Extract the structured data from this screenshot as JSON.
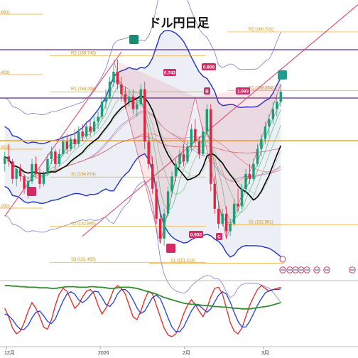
{
  "title": "ドル円日足",
  "colors": {
    "up": "#1b9e77",
    "down": "#e5213f",
    "pivot": "#f0a422",
    "bb": "#1d2fd6",
    "kc": "#6a68cf",
    "zz": "#d83a54",
    "ma_black": "#000000",
    "osc_red": "#e8251f",
    "osc_blue": "#1f3fe0",
    "osc_green": "#2f8f2f",
    "tag_green": "#1b8a73",
    "tag_pink": "#d12c66"
  },
  "chart_data": [
    {
      "type": "candlestick",
      "title": "ドル円日足",
      "x_ticks": [
        "12月",
        "2026",
        "2月",
        "3月"
      ],
      "pivot_levels": [
        {
          "name": "R2",
          "label": "R2 (159.743)",
          "value": 159.743
        },
        {
          "name": "R1",
          "label": "R1 (158.298)",
          "value": 158.298
        },
        {
          "name": "S1",
          "label": "S1 (154.874)",
          "value": 154.874
        },
        {
          "name": "S2",
          "label": "S2 (152.895)",
          "value": 152.895
        },
        {
          "name": "S3",
          "label": "S3 (151.450)",
          "value": 151.45
        },
        {
          "name": "R2",
          "label": "R2 (160.703)",
          "value": 160.703
        },
        {
          "name": "R1",
          "label": "R1 (158.354)",
          "value": 158.354
        },
        {
          "name": "S1",
          "label": "S1 (152.961)",
          "value": 152.961
        },
        {
          "name": "S1",
          "label": "S1 (151.418)",
          "value": 151.418
        }
      ],
      "edge_labels": [
        ".691)",
        ".409)",
        ".612)",
        ".290)"
      ],
      "patterns": [
        {
          "point": "B",
          "ratio": "0.808"
        },
        {
          "point": "C",
          "ratio": "0.935"
        },
        {
          "point": "D",
          "ratio": "1.093"
        }
      ],
      "pattern_ratio_top": "0.743",
      "pattern_ratio_r1": "0.743",
      "candles": [
        [
          155.4,
          155.9,
          155.1,
          155.7
        ],
        [
          155.7,
          156.2,
          155.3,
          155.5
        ],
        [
          155.5,
          155.6,
          154.6,
          154.8
        ],
        [
          154.8,
          155.3,
          154.5,
          155.2
        ],
        [
          155.2,
          155.4,
          154.7,
          154.9
        ],
        [
          154.9,
          155.0,
          154.2,
          154.4
        ],
        [
          154.4,
          154.9,
          154.0,
          154.7
        ],
        [
          154.7,
          155.6,
          154.6,
          155.4
        ],
        [
          155.4,
          155.7,
          154.8,
          155.0
        ],
        [
          155.0,
          155.2,
          154.4,
          154.6
        ],
        [
          154.6,
          155.1,
          154.5,
          155.0
        ],
        [
          155.0,
          155.8,
          154.9,
          155.6
        ],
        [
          155.6,
          156.1,
          155.4,
          155.9
        ],
        [
          155.9,
          156.0,
          155.2,
          155.4
        ],
        [
          155.4,
          156.0,
          155.3,
          155.8
        ],
        [
          155.8,
          156.5,
          155.7,
          156.3
        ],
        [
          156.3,
          156.6,
          155.8,
          156.0
        ],
        [
          156.0,
          156.5,
          155.9,
          156.4
        ],
        [
          156.4,
          156.8,
          156.0,
          156.2
        ],
        [
          156.2,
          156.9,
          156.1,
          156.7
        ],
        [
          156.7,
          157.0,
          156.3,
          156.5
        ],
        [
          156.5,
          157.1,
          156.4,
          156.9
        ],
        [
          156.9,
          157.2,
          156.5,
          156.7
        ],
        [
          156.7,
          157.3,
          156.6,
          157.1
        ],
        [
          157.1,
          157.5,
          156.8,
          157.3
        ],
        [
          157.3,
          158.1,
          157.2,
          157.9
        ],
        [
          157.9,
          158.4,
          157.6,
          158.1
        ],
        [
          158.1,
          158.9,
          158.0,
          158.7
        ],
        [
          158.7,
          159.4,
          158.5,
          159.1
        ],
        [
          159.1,
          159.6,
          158.4,
          158.6
        ],
        [
          158.6,
          158.9,
          157.9,
          158.2
        ],
        [
          158.2,
          158.5,
          157.6,
          157.9
        ],
        [
          157.9,
          158.3,
          157.7,
          158.1
        ],
        [
          158.1,
          158.4,
          157.4,
          157.6
        ],
        [
          157.6,
          158.0,
          157.3,
          157.8
        ],
        [
          157.8,
          158.6,
          157.7,
          158.4
        ],
        [
          158.4,
          158.7,
          156.0,
          156.3
        ],
        [
          156.3,
          156.6,
          155.2,
          155.4
        ],
        [
          155.4,
          155.7,
          154.2,
          154.4
        ],
        [
          154.4,
          154.7,
          153.0,
          153.2
        ],
        [
          153.2,
          153.5,
          152.2,
          152.4
        ],
        [
          152.4,
          153.6,
          152.1,
          153.4
        ],
        [
          153.4,
          154.5,
          153.3,
          154.3
        ],
        [
          154.3,
          155.1,
          154.1,
          154.9
        ],
        [
          154.9,
          155.6,
          154.7,
          155.4
        ],
        [
          155.4,
          156.0,
          155.2,
          155.8
        ],
        [
          155.8,
          156.2,
          155.3,
          155.5
        ],
        [
          155.5,
          156.3,
          155.4,
          156.1
        ],
        [
          156.1,
          157.0,
          155.9,
          156.8
        ],
        [
          156.8,
          157.2,
          156.1,
          156.3
        ],
        [
          156.3,
          156.5,
          155.6,
          155.8
        ],
        [
          155.8,
          156.9,
          155.7,
          156.7
        ],
        [
          156.7,
          157.8,
          156.6,
          157.6
        ],
        [
          157.6,
          157.8,
          154.3,
          154.6
        ],
        [
          154.6,
          154.9,
          153.4,
          153.6
        ],
        [
          153.6,
          153.9,
          152.8,
          153.0
        ],
        [
          153.0,
          153.6,
          152.9,
          153.4
        ],
        [
          153.4,
          153.7,
          152.4,
          152.7
        ],
        [
          152.7,
          153.2,
          152.5,
          153.0
        ],
        [
          153.0,
          154.0,
          152.9,
          153.8
        ],
        [
          153.8,
          154.4,
          153.5,
          153.7
        ],
        [
          153.7,
          154.6,
          153.6,
          154.4
        ],
        [
          154.4,
          155.2,
          154.2,
          155.0
        ],
        [
          155.0,
          155.4,
          154.6,
          154.8
        ],
        [
          154.8,
          155.6,
          154.7,
          155.4
        ],
        [
          155.4,
          156.2,
          155.3,
          156.0
        ],
        [
          156.0,
          156.6,
          155.7,
          156.4
        ],
        [
          156.4,
          157.1,
          156.2,
          156.9
        ],
        [
          156.9,
          157.4,
          156.5,
          157.2
        ],
        [
          157.2,
          157.9,
          157.0,
          157.6
        ],
        [
          157.6,
          158.2,
          157.3,
          157.9
        ],
        [
          157.9,
          158.6,
          157.7,
          158.3
        ]
      ]
    },
    {
      "type": "line",
      "title": "",
      "series": [
        {
          "color": "#e8251f",
          "values": [
            55,
            40,
            20,
            10,
            15,
            30,
            50,
            65,
            55,
            40,
            22,
            18,
            35,
            60,
            80,
            90,
            85,
            70,
            55,
            62,
            75,
            85,
            88,
            80,
            60,
            45,
            55,
            70,
            88,
            95,
            90,
            80,
            60,
            40,
            35,
            50,
            70,
            85,
            80,
            60,
            40,
            20,
            8,
            5,
            10,
            25,
            45,
            60,
            70,
            62,
            50,
            40,
            55,
            75,
            90,
            92,
            80,
            55,
            30,
            15,
            10,
            20,
            40,
            60,
            75,
            88,
            95,
            90,
            85,
            88,
            90,
            92
          ]
        },
        {
          "color": "#1f3fe0",
          "values": [
            45,
            42,
            35,
            25,
            18,
            18,
            25,
            38,
            48,
            50,
            42,
            32,
            28,
            36,
            52,
            68,
            80,
            84,
            80,
            70,
            65,
            70,
            78,
            85,
            84,
            74,
            62,
            58,
            66,
            80,
            88,
            88,
            82,
            70,
            56,
            46,
            50,
            62,
            74,
            78,
            72,
            56,
            38,
            22,
            14,
            14,
            22,
            36,
            50,
            60,
            60,
            54,
            48,
            54,
            66,
            78,
            84,
            80,
            66,
            48,
            32,
            22,
            22,
            32,
            46,
            60,
            72,
            82,
            86,
            88,
            88,
            89
          ]
        },
        {
          "color": "#2f8f2f",
          "values": [
            95,
            95,
            94,
            94,
            93,
            93,
            92,
            92,
            92,
            91,
            91,
            91,
            90,
            90,
            91,
            92,
            93,
            93,
            93,
            92,
            92,
            92,
            93,
            93,
            92,
            92,
            91,
            90,
            90,
            91,
            92,
            92,
            92,
            91,
            90,
            88,
            86,
            84,
            82,
            80,
            77,
            74,
            72,
            70,
            68,
            66,
            64,
            63,
            62,
            62,
            61,
            60,
            60,
            59,
            58,
            58,
            57,
            57,
            56,
            55,
            55,
            54,
            54,
            54,
            55,
            56,
            57,
            58,
            59,
            61,
            63,
            65
          ]
        }
      ]
    }
  ]
}
